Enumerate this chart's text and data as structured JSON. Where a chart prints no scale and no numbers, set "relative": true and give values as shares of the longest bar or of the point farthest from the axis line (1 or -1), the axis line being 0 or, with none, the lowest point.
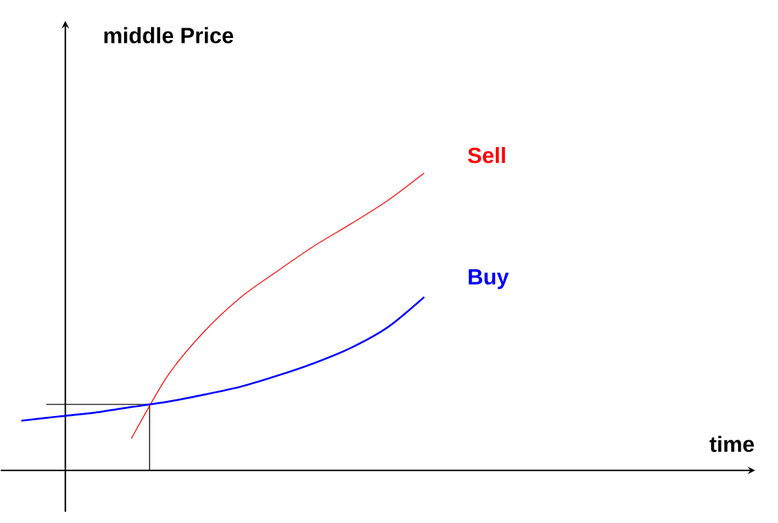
{
  "chart_data": {
    "type": "line",
    "relative": true,
    "annotations": [
      "middle Price",
      "time"
    ],
    "categories": [
      null,
      null,
      null,
      null,
      null,
      null,
      null,
      null,
      null,
      null,
      null,
      null
    ],
    "series": [
      {
        "name": "Sell",
        "color": "#ff0000",
        "values": [
          null,
          null,
          null,
          0.106,
          0.319,
          0.468,
          0.583,
          0.671,
          0.755,
          0.829,
          0.907,
          1.0
        ]
      },
      {
        "name": "Buy",
        "color": "#0000ff",
        "values": [
          0.167,
          0.181,
          0.194,
          0.213,
          0.231,
          0.255,
          0.282,
          0.319,
          0.361,
          0.412,
          0.481,
          0.583
        ]
      }
    ],
    "ref_lines": [
      {
        "axis": "y",
        "value": 0.222
      }
    ]
  }
}
